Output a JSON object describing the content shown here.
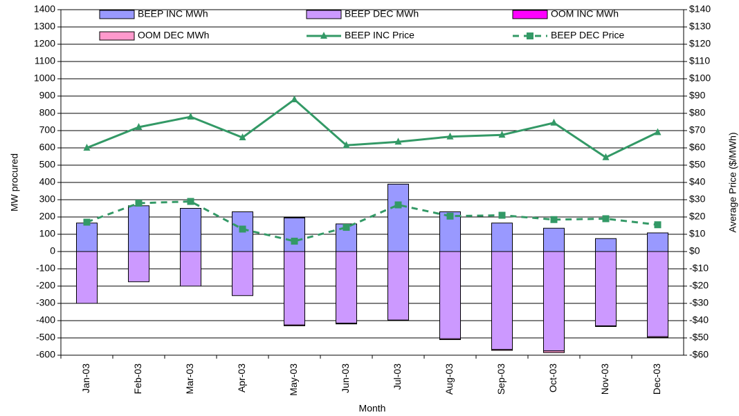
{
  "chart_data": {
    "type": "bar",
    "x_label": "Month",
    "y_label": "MW procured",
    "y2_label": "Average Price ($/MWh)",
    "categories": [
      "Jan-03",
      "Feb-03",
      "Mar-03",
      "Apr-03",
      "May-03",
      "Jun-03",
      "Jul-03",
      "Aug-03",
      "Sep-03",
      "Oct-03",
      "Nov-03",
      "Dec-03"
    ],
    "series": [
      {
        "name": "BEEP INC MWh",
        "type": "bar",
        "color": "#9999ff",
        "values": [
          165,
          265,
          250,
          230,
          195,
          160,
          390,
          230,
          165,
          135,
          75,
          108
        ]
      },
      {
        "name": "BEEP DEC MWh",
        "type": "bar",
        "color": "#cc99ff",
        "values": [
          -300,
          -175,
          -200,
          -255,
          -425,
          -415,
          -397,
          -505,
          -567,
          -575,
          -430,
          -493
        ]
      },
      {
        "name": "OOM INC MWh",
        "type": "bar",
        "color": "#ff00ff",
        "values": [
          0,
          0,
          0,
          0,
          3,
          0,
          0,
          0,
          0,
          0,
          0,
          0
        ]
      },
      {
        "name": "OOM DEC MWh",
        "type": "bar",
        "color": "#ff99cc",
        "values": [
          0,
          0,
          0,
          0,
          -5,
          -4,
          -3,
          -5,
          -5,
          -10,
          -4,
          -5
        ]
      },
      {
        "name": "BEEP INC Price",
        "type": "line",
        "axis": "y2",
        "color": "#339966",
        "marker": "triangle",
        "line_style": "solid",
        "values": [
          60,
          72,
          78,
          66,
          88,
          61.5,
          63.5,
          66.5,
          67.5,
          74.5,
          54.5,
          69
        ]
      },
      {
        "name": "BEEP DEC Price",
        "type": "line",
        "axis": "y2",
        "color": "#339966",
        "marker": "square",
        "line_style": "dashed",
        "values": [
          17,
          28,
          29,
          13,
          6,
          14,
          27,
          20.5,
          21,
          18.5,
          19,
          15.5
        ]
      }
    ],
    "ylim": [
      -600,
      1400
    ],
    "yticks": [
      -600,
      -500,
      -400,
      -300,
      -200,
      -100,
      0,
      100,
      200,
      300,
      400,
      500,
      600,
      700,
      800,
      900,
      1000,
      1100,
      1200,
      1300,
      1400
    ],
    "y2lim": [
      -60,
      140
    ],
    "y2ticks": [
      {
        "value": -60,
        "label": "-$60"
      },
      {
        "value": -50,
        "label": "-$50"
      },
      {
        "value": -40,
        "label": "-$40"
      },
      {
        "value": -30,
        "label": "-$30"
      },
      {
        "value": -20,
        "label": "-$20"
      },
      {
        "value": -10,
        "label": "-$10"
      },
      {
        "value": 0,
        "label": "$0"
      },
      {
        "value": 10,
        "label": "$10"
      },
      {
        "value": 20,
        "label": "$20"
      },
      {
        "value": 30,
        "label": "$30"
      },
      {
        "value": 40,
        "label": "$40"
      },
      {
        "value": 50,
        "label": "$50"
      },
      {
        "value": 60,
        "label": "$60"
      },
      {
        "value": 70,
        "label": "$70"
      },
      {
        "value": 80,
        "label": "$80"
      },
      {
        "value": 90,
        "label": "$90"
      },
      {
        "value": 100,
        "label": "$100"
      },
      {
        "value": 110,
        "label": "$110"
      },
      {
        "value": 120,
        "label": "$120"
      },
      {
        "value": 130,
        "label": "$130"
      },
      {
        "value": 140,
        "label": "$140"
      }
    ],
    "grid": true
  }
}
